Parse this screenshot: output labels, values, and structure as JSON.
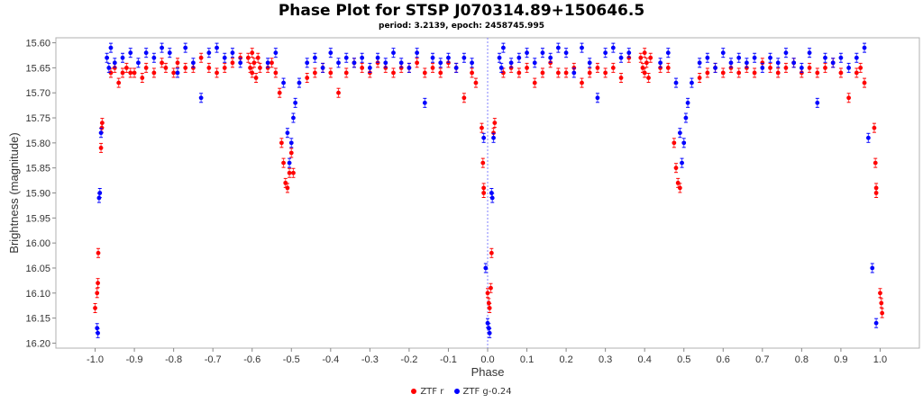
{
  "chart_data": {
    "type": "scatter",
    "title": "Phase Plot for STSP J070314.89+150646.5",
    "subtitle": "period: 3.2139, epoch: 2458745.995",
    "xlabel": "Phase",
    "ylabel": "Brightness (magnitude)",
    "xlim": [
      -1.1,
      1.1
    ],
    "ylim": [
      15.59,
      16.21
    ],
    "y_inverted": true,
    "x_ticks": [
      "-1.0",
      "-0.9",
      "-0.8",
      "-0.7",
      "-0.6",
      "-0.5",
      "-0.4",
      "-0.3",
      "-0.2",
      "-0.1",
      "0.0",
      "0.1",
      "0.2",
      "0.3",
      "0.4",
      "0.5",
      "0.6",
      "0.7",
      "0.8",
      "0.9",
      "1.0"
    ],
    "y_ticks": [
      "15.60",
      "15.65",
      "15.70",
      "15.75",
      "15.80",
      "15.85",
      "15.90",
      "15.95",
      "16.00",
      "16.05",
      "16.10",
      "16.15",
      "16.20"
    ],
    "grid": false,
    "reference_line_x": 0.0,
    "legend_position": "bottom",
    "series": [
      {
        "name": "ZTF r",
        "color": "#ff0000",
        "points": [
          [
            -1.0,
            16.13
          ],
          [
            -0.995,
            16.1
          ],
          [
            -0.993,
            16.08
          ],
          [
            -0.992,
            16.02
          ],
          [
            -0.985,
            15.81
          ],
          [
            -0.983,
            15.77
          ],
          [
            -0.982,
            15.76
          ],
          [
            -0.96,
            15.66
          ],
          [
            -0.95,
            15.65
          ],
          [
            -0.94,
            15.68
          ],
          [
            -0.93,
            15.66
          ],
          [
            -0.92,
            15.65
          ],
          [
            -0.91,
            15.66
          ],
          [
            -0.9,
            15.66
          ],
          [
            -0.88,
            15.67
          ],
          [
            -0.87,
            15.65
          ],
          [
            -0.85,
            15.66
          ],
          [
            -0.83,
            15.64
          ],
          [
            -0.82,
            15.65
          ],
          [
            -0.8,
            15.66
          ],
          [
            -0.79,
            15.64
          ],
          [
            -0.77,
            15.65
          ],
          [
            -0.75,
            15.65
          ],
          [
            -0.73,
            15.63
          ],
          [
            -0.71,
            15.65
          ],
          [
            -0.69,
            15.66
          ],
          [
            -0.67,
            15.65
          ],
          [
            -0.65,
            15.64
          ],
          [
            -0.63,
            15.63
          ],
          [
            -0.61,
            15.63
          ],
          [
            -0.605,
            15.65
          ],
          [
            -0.6,
            15.62
          ],
          [
            -0.6,
            15.66
          ],
          [
            -0.595,
            15.64
          ],
          [
            -0.59,
            15.67
          ],
          [
            -0.585,
            15.63
          ],
          [
            -0.58,
            15.65
          ],
          [
            -0.56,
            15.65
          ],
          [
            -0.55,
            15.64
          ],
          [
            -0.54,
            15.66
          ],
          [
            -0.53,
            15.7
          ],
          [
            -0.525,
            15.8
          ],
          [
            -0.52,
            15.84
          ],
          [
            -0.515,
            15.88
          ],
          [
            -0.51,
            15.89
          ],
          [
            -0.505,
            15.86
          ],
          [
            -0.5,
            15.82
          ],
          [
            -0.495,
            15.86
          ],
          [
            -0.46,
            15.67
          ],
          [
            -0.44,
            15.66
          ],
          [
            -0.42,
            15.65
          ],
          [
            -0.4,
            15.66
          ],
          [
            -0.38,
            15.7
          ],
          [
            -0.36,
            15.66
          ],
          [
            -0.34,
            15.64
          ],
          [
            -0.32,
            15.65
          ],
          [
            -0.3,
            15.66
          ],
          [
            -0.28,
            15.64
          ],
          [
            -0.26,
            15.65
          ],
          [
            -0.24,
            15.66
          ],
          [
            -0.22,
            15.65
          ],
          [
            -0.2,
            15.65
          ],
          [
            -0.18,
            15.64
          ],
          [
            -0.16,
            15.66
          ],
          [
            -0.14,
            15.65
          ],
          [
            -0.12,
            15.66
          ],
          [
            -0.1,
            15.64
          ],
          [
            -0.08,
            15.65
          ],
          [
            -0.06,
            15.71
          ],
          [
            -0.04,
            15.66
          ],
          [
            -0.03,
            15.68
          ],
          [
            -0.015,
            15.77
          ],
          [
            -0.012,
            15.84
          ],
          [
            -0.01,
            15.89
          ],
          [
            -0.01,
            15.9
          ],
          [
            0.0,
            16.1
          ],
          [
            0.003,
            16.12
          ],
          [
            0.005,
            16.13
          ],
          [
            0.008,
            16.09
          ],
          [
            0.01,
            16.02
          ],
          [
            0.015,
            15.78
          ],
          [
            0.018,
            15.76
          ],
          [
            0.04,
            15.66
          ],
          [
            0.06,
            15.65
          ],
          [
            0.08,
            15.66
          ],
          [
            0.1,
            15.65
          ],
          [
            0.12,
            15.68
          ],
          [
            0.14,
            15.66
          ],
          [
            0.16,
            15.64
          ],
          [
            0.18,
            15.66
          ],
          [
            0.2,
            15.66
          ],
          [
            0.22,
            15.65
          ],
          [
            0.24,
            15.68
          ],
          [
            0.26,
            15.66
          ],
          [
            0.28,
            15.65
          ],
          [
            0.3,
            15.66
          ],
          [
            0.32,
            15.65
          ],
          [
            0.34,
            15.67
          ],
          [
            0.36,
            15.63
          ],
          [
            0.39,
            15.63
          ],
          [
            0.395,
            15.65
          ],
          [
            0.4,
            15.62
          ],
          [
            0.4,
            15.66
          ],
          [
            0.405,
            15.64
          ],
          [
            0.41,
            15.67
          ],
          [
            0.415,
            15.63
          ],
          [
            0.44,
            15.65
          ],
          [
            0.46,
            15.65
          ],
          [
            0.475,
            15.8
          ],
          [
            0.48,
            15.85
          ],
          [
            0.485,
            15.88
          ],
          [
            0.49,
            15.89
          ],
          [
            0.54,
            15.67
          ],
          [
            0.56,
            15.66
          ],
          [
            0.58,
            15.65
          ],
          [
            0.6,
            15.66
          ],
          [
            0.62,
            15.65
          ],
          [
            0.64,
            15.66
          ],
          [
            0.66,
            15.65
          ],
          [
            0.68,
            15.66
          ],
          [
            0.7,
            15.64
          ],
          [
            0.72,
            15.65
          ],
          [
            0.74,
            15.66
          ],
          [
            0.76,
            15.65
          ],
          [
            0.78,
            15.64
          ],
          [
            0.8,
            15.66
          ],
          [
            0.82,
            15.65
          ],
          [
            0.84,
            15.66
          ],
          [
            0.86,
            15.65
          ],
          [
            0.88,
            15.64
          ],
          [
            0.9,
            15.66
          ],
          [
            0.92,
            15.71
          ],
          [
            0.94,
            15.66
          ],
          [
            0.95,
            15.65
          ],
          [
            0.96,
            15.68
          ],
          [
            0.985,
            15.77
          ],
          [
            0.988,
            15.84
          ],
          [
            0.99,
            15.89
          ],
          [
            0.99,
            15.9
          ],
          [
            1.0,
            16.1
          ],
          [
            1.003,
            16.12
          ],
          [
            1.005,
            16.14
          ]
        ]
      },
      {
        "name": "ZTF g-0.24",
        "color": "#0000ff",
        "points": [
          [
            -0.995,
            16.17
          ],
          [
            -0.993,
            16.18
          ],
          [
            -0.99,
            15.91
          ],
          [
            -0.988,
            15.9
          ],
          [
            -0.985,
            15.78
          ],
          [
            -0.97,
            15.63
          ],
          [
            -0.965,
            15.65
          ],
          [
            -0.96,
            15.61
          ],
          [
            -0.95,
            15.64
          ],
          [
            -0.93,
            15.63
          ],
          [
            -0.91,
            15.62
          ],
          [
            -0.89,
            15.64
          ],
          [
            -0.87,
            15.62
          ],
          [
            -0.85,
            15.63
          ],
          [
            -0.83,
            15.61
          ],
          [
            -0.81,
            15.62
          ],
          [
            -0.79,
            15.66
          ],
          [
            -0.77,
            15.61
          ],
          [
            -0.75,
            15.64
          ],
          [
            -0.73,
            15.71
          ],
          [
            -0.71,
            15.62
          ],
          [
            -0.69,
            15.61
          ],
          [
            -0.67,
            15.63
          ],
          [
            -0.65,
            15.62
          ],
          [
            -0.63,
            15.64
          ],
          [
            -0.56,
            15.64
          ],
          [
            -0.54,
            15.62
          ],
          [
            -0.52,
            15.68
          ],
          [
            -0.51,
            15.78
          ],
          [
            -0.505,
            15.84
          ],
          [
            -0.5,
            15.8
          ],
          [
            -0.495,
            15.75
          ],
          [
            -0.49,
            15.72
          ],
          [
            -0.48,
            15.68
          ],
          [
            -0.46,
            15.64
          ],
          [
            -0.44,
            15.63
          ],
          [
            -0.42,
            15.65
          ],
          [
            -0.4,
            15.62
          ],
          [
            -0.38,
            15.64
          ],
          [
            -0.36,
            15.63
          ],
          [
            -0.34,
            15.64
          ],
          [
            -0.32,
            15.63
          ],
          [
            -0.3,
            15.65
          ],
          [
            -0.28,
            15.63
          ],
          [
            -0.26,
            15.64
          ],
          [
            -0.24,
            15.62
          ],
          [
            -0.22,
            15.64
          ],
          [
            -0.2,
            15.65
          ],
          [
            -0.18,
            15.62
          ],
          [
            -0.16,
            15.72
          ],
          [
            -0.14,
            15.63
          ],
          [
            -0.12,
            15.64
          ],
          [
            -0.1,
            15.63
          ],
          [
            -0.08,
            15.65
          ],
          [
            -0.06,
            15.63
          ],
          [
            -0.04,
            15.64
          ],
          [
            -0.01,
            15.79
          ],
          [
            -0.005,
            16.05
          ],
          [
            0.0,
            16.16
          ],
          [
            0.003,
            16.17
          ],
          [
            0.005,
            16.18
          ],
          [
            0.01,
            15.9
          ],
          [
            0.012,
            15.91
          ],
          [
            0.015,
            15.79
          ],
          [
            0.03,
            15.63
          ],
          [
            0.035,
            15.65
          ],
          [
            0.04,
            15.61
          ],
          [
            0.06,
            15.64
          ],
          [
            0.08,
            15.63
          ],
          [
            0.1,
            15.62
          ],
          [
            0.12,
            15.64
          ],
          [
            0.14,
            15.62
          ],
          [
            0.16,
            15.63
          ],
          [
            0.18,
            15.61
          ],
          [
            0.2,
            15.62
          ],
          [
            0.22,
            15.66
          ],
          [
            0.24,
            15.61
          ],
          [
            0.26,
            15.64
          ],
          [
            0.28,
            15.71
          ],
          [
            0.3,
            15.62
          ],
          [
            0.32,
            15.61
          ],
          [
            0.34,
            15.63
          ],
          [
            0.36,
            15.62
          ],
          [
            0.44,
            15.64
          ],
          [
            0.46,
            15.62
          ],
          [
            0.48,
            15.68
          ],
          [
            0.49,
            15.78
          ],
          [
            0.495,
            15.84
          ],
          [
            0.5,
            15.8
          ],
          [
            0.505,
            15.75
          ],
          [
            0.51,
            15.72
          ],
          [
            0.52,
            15.68
          ],
          [
            0.54,
            15.64
          ],
          [
            0.56,
            15.63
          ],
          [
            0.58,
            15.65
          ],
          [
            0.6,
            15.62
          ],
          [
            0.62,
            15.64
          ],
          [
            0.64,
            15.63
          ],
          [
            0.66,
            15.64
          ],
          [
            0.68,
            15.63
          ],
          [
            0.7,
            15.65
          ],
          [
            0.72,
            15.63
          ],
          [
            0.74,
            15.64
          ],
          [
            0.76,
            15.62
          ],
          [
            0.78,
            15.64
          ],
          [
            0.8,
            15.65
          ],
          [
            0.82,
            15.62
          ],
          [
            0.84,
            15.72
          ],
          [
            0.86,
            15.63
          ],
          [
            0.88,
            15.64
          ],
          [
            0.9,
            15.63
          ],
          [
            0.92,
            15.65
          ],
          [
            0.94,
            15.63
          ],
          [
            0.96,
            15.61
          ],
          [
            0.97,
            15.79
          ],
          [
            0.98,
            16.05
          ],
          [
            0.99,
            16.16
          ]
        ]
      }
    ]
  }
}
